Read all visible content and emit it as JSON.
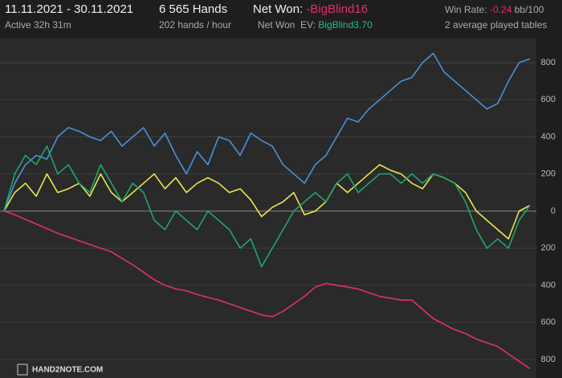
{
  "header": {
    "period": "11.11.2021 - 30.11.2021",
    "active": "Active 32h 31m",
    "hands": "6 565 Hands",
    "rate": "202 hands / hour",
    "net_won_label": "Net Won:",
    "net_won": "-BigBlind16",
    "net_won_ev_label": "Net Won  EV:",
    "net_won_ev": "BigBlind3.70",
    "win_rate_label": "Win Rate:",
    "win_rate": "-0.24",
    "win_rate_unit": "bb/100",
    "tables": "2 average played tables",
    "logo": "HAND2NOTE.COM"
  },
  "chart_data": {
    "type": "line",
    "ylim": [
      -900,
      930
    ],
    "yticks": [
      {
        "value": -800,
        "label": "800"
      },
      {
        "value": -600,
        "label": "600"
      },
      {
        "value": -400,
        "label": "400"
      },
      {
        "value": -200,
        "label": "200"
      },
      0,
      200,
      400,
      600,
      800
    ],
    "grid": true,
    "series": [
      {
        "color": "#4a90d9",
        "values": [
          0,
          150,
          250,
          300,
          280,
          400,
          450,
          430,
          400,
          380,
          430,
          350,
          400,
          450,
          350,
          420,
          300,
          200,
          320,
          250,
          400,
          380,
          300,
          420,
          380,
          350,
          250,
          200,
          150,
          250,
          300,
          400,
          500,
          480,
          550,
          600,
          650,
          700,
          720,
          800,
          850,
          750,
          700,
          650,
          600,
          550,
          580,
          700,
          800,
          820
        ]
      },
      {
        "color": "#e8e84a",
        "values": [
          0,
          100,
          150,
          80,
          200,
          100,
          120,
          150,
          80,
          200,
          100,
          50,
          100,
          150,
          200,
          120,
          180,
          100,
          150,
          180,
          150,
          100,
          120,
          60,
          -30,
          20,
          50,
          100,
          -20,
          0,
          50,
          150,
          100,
          150,
          200,
          250,
          220,
          200,
          150,
          120,
          200,
          180,
          150,
          100,
          0,
          -50,
          -100,
          -150,
          0,
          30
        ]
      },
      {
        "color": "#1fa66a",
        "values": [
          0,
          200,
          300,
          250,
          350,
          200,
          250,
          150,
          100,
          250,
          150,
          50,
          150,
          100,
          -50,
          -100,
          0,
          -50,
          -100,
          0,
          -50,
          -100,
          -200,
          -150,
          -300,
          -200,
          -100,
          0,
          50,
          100,
          50,
          150,
          200,
          100,
          150,
          200,
          200,
          150,
          200,
          150,
          200,
          180,
          150,
          50,
          -100,
          -200,
          -150,
          -200,
          -50,
          30
        ]
      },
      {
        "color": "#e0306a",
        "values": [
          0,
          -20,
          -45,
          -70,
          -95,
          -120,
          -140,
          -160,
          -180,
          -200,
          -220,
          -255,
          -290,
          -330,
          -370,
          -400,
          -420,
          -430,
          -450,
          -465,
          -480,
          -500,
          -520,
          -540,
          -560,
          -570,
          -540,
          -500,
          -460,
          -410,
          -390,
          -400,
          -410,
          -420,
          -440,
          -460,
          -470,
          -480,
          -480,
          -530,
          -580,
          -610,
          -640,
          -660,
          -690,
          -710,
          -730,
          -770,
          -810,
          -850
        ]
      }
    ]
  }
}
